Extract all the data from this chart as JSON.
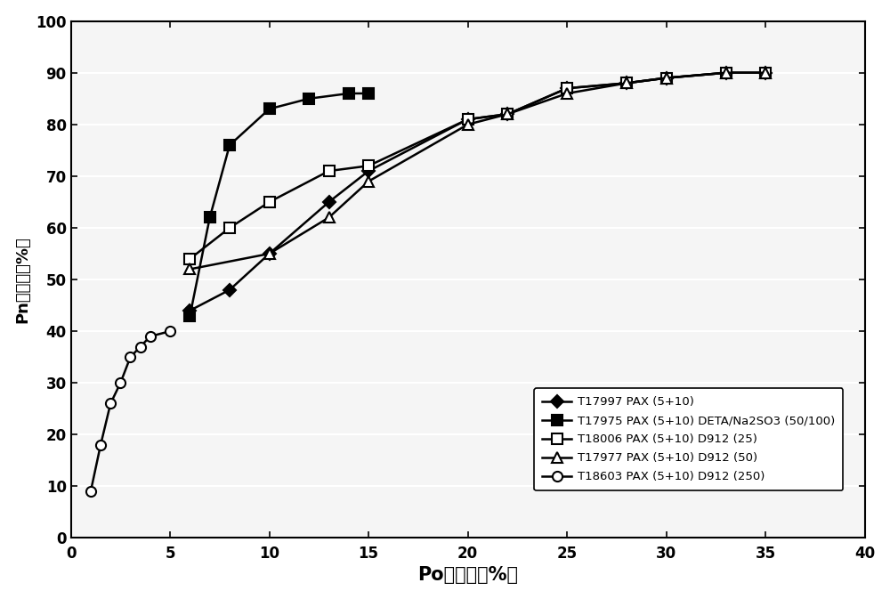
{
  "series": [
    {
      "label": "T17997 PAX (5+10)",
      "x": [
        6,
        8,
        10,
        13,
        15,
        20,
        22,
        25,
        28,
        30,
        33,
        35
      ],
      "y": [
        44,
        48,
        55,
        65,
        71,
        81,
        82,
        87,
        88,
        89,
        90,
        90
      ],
      "marker": "D",
      "marker_filled": true,
      "color": "black",
      "markersize": 7,
      "linewidth": 1.8
    },
    {
      "label": "T17975 PAX (5+10) DETA/Na2SO3 (50/100)",
      "x": [
        6,
        7,
        8,
        10,
        12,
        14,
        15
      ],
      "y": [
        43,
        62,
        76,
        83,
        85,
        86,
        86
      ],
      "marker": "s",
      "marker_filled": true,
      "color": "black",
      "markersize": 8,
      "linewidth": 1.8
    },
    {
      "label": "T18006 PAX (5+10) D912 (25)",
      "x": [
        6,
        8,
        10,
        13,
        15,
        20,
        22,
        25,
        28,
        30,
        33,
        35
      ],
      "y": [
        54,
        60,
        65,
        71,
        72,
        81,
        82,
        87,
        88,
        89,
        90,
        90
      ],
      "marker": "s",
      "marker_filled": false,
      "color": "black",
      "markersize": 8,
      "linewidth": 1.8
    },
    {
      "label": "T17977 PAX (5+10) D912 (50)",
      "x": [
        6,
        10,
        13,
        15,
        20,
        22,
        25,
        28,
        30,
        33,
        35
      ],
      "y": [
        52,
        55,
        62,
        69,
        80,
        82,
        86,
        88,
        89,
        90,
        90
      ],
      "marker": "^",
      "marker_filled": false,
      "color": "black",
      "markersize": 8,
      "linewidth": 1.8
    },
    {
      "label": "T18603 PAX (5+10) D912 (250)",
      "x": [
        1,
        1.5,
        2,
        2.5,
        3,
        3.5,
        4,
        5
      ],
      "y": [
        9,
        18,
        26,
        30,
        35,
        37,
        39,
        40
      ],
      "marker": "o",
      "marker_filled": false,
      "color": "black",
      "markersize": 8,
      "linewidth": 1.8
    }
  ],
  "xlabel": "Po回收率（%）",
  "ylabel": "Pn回收率（%）",
  "xlim": [
    0,
    40
  ],
  "ylim": [
    0,
    100
  ],
  "xticks": [
    0,
    5,
    10,
    15,
    20,
    25,
    30,
    35,
    40
  ],
  "yticks": [
    0,
    10,
    20,
    30,
    40,
    50,
    60,
    70,
    80,
    90,
    100
  ],
  "background_color": "#ffffff",
  "plot_bg_color": "#f5f5f5",
  "grid_color": "#ffffff",
  "xlabel_fontsize": 15,
  "ylabel_fontsize": 13,
  "tick_fontsize": 12,
  "legend_fontsize": 9.5
}
